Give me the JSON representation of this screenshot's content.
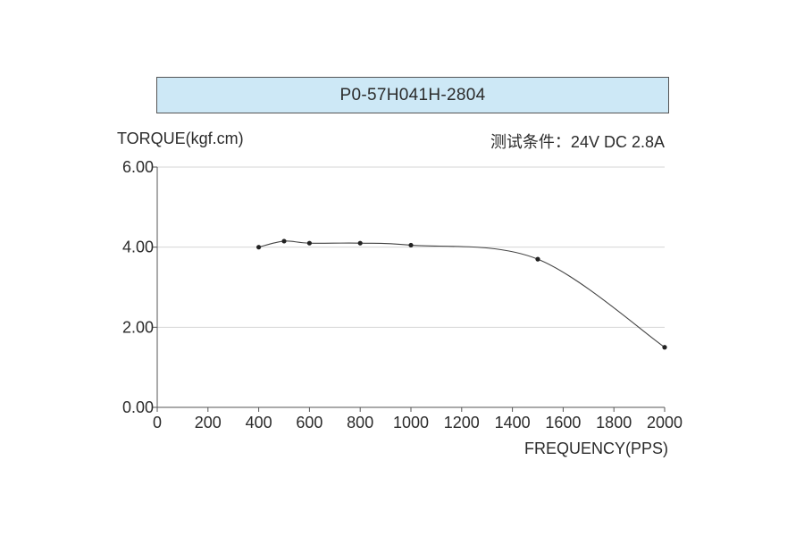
{
  "chart_data": {
    "type": "line",
    "title": "P0-57H041H-2804",
    "ylabel": "TORQUE(kgf.cm)",
    "xlabel": "FREQUENCY(PPS)",
    "annotation": "测试条件：24V DC  2.8A",
    "x": [
      400,
      500,
      600,
      800,
      1000,
      1500,
      2000
    ],
    "values": [
      4.0,
      4.15,
      4.1,
      4.1,
      4.05,
      3.7,
      1.5
    ],
    "xlim": [
      0,
      2000
    ],
    "ylim": [
      0,
      6
    ],
    "x_ticks": [
      "0",
      "200",
      "400",
      "600",
      "800",
      "1000",
      "1200",
      "1400",
      "1600",
      "1800",
      "2000"
    ],
    "y_ticks": [
      "0.00",
      "2.00",
      "4.00",
      "6.00"
    ],
    "grid": "horizontal",
    "line_color": "#444444",
    "marker_color": "#222222",
    "grid_color": "#d4d4d4",
    "title_bg": "#cde8f6"
  }
}
